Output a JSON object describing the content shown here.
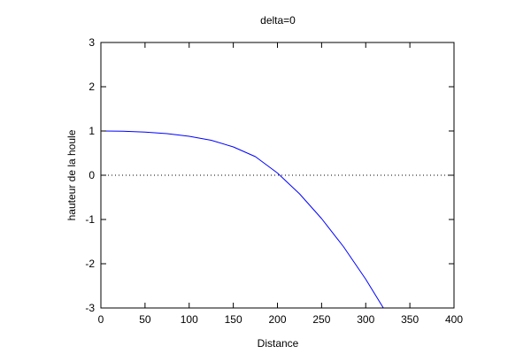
{
  "chart_data": {
    "type": "line",
    "title": "delta=0",
    "xlabel": "Distance",
    "ylabel": "hauteur de la houle",
    "xlim": [
      0,
      400
    ],
    "ylim": [
      -3,
      3
    ],
    "xticks": [
      0,
      50,
      100,
      150,
      200,
      250,
      300,
      350,
      400
    ],
    "yticks": [
      -3,
      -2,
      -1,
      0,
      1,
      2,
      3
    ],
    "grid": false,
    "legend": "none",
    "zero_line": {
      "y": 0,
      "style": "dotted",
      "color": "#000000"
    },
    "series": [
      {
        "color": "#0000ff",
        "x": [
          0,
          25,
          50,
          75,
          100,
          125,
          150,
          175,
          200,
          225,
          250,
          275,
          300,
          320
        ],
        "y": [
          1.0,
          0.995,
          0.975,
          0.94,
          0.88,
          0.79,
          0.64,
          0.42,
          0.05,
          -0.42,
          -0.98,
          -1.62,
          -2.35,
          -3.0
        ]
      }
    ]
  }
}
